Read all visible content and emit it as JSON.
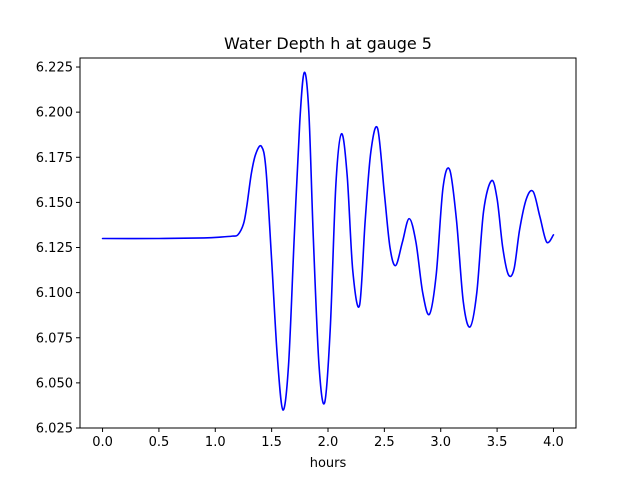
{
  "chart_data": {
    "type": "line",
    "title": "Water Depth h at gauge 5",
    "xlabel": "hours",
    "ylabel": "",
    "xlim": [
      -0.2,
      4.2
    ],
    "ylim": [
      6.025,
      6.23
    ],
    "grid": false,
    "x_ticks": [
      {
        "value": 0.0,
        "label": "0.0"
      },
      {
        "value": 0.5,
        "label": "0.5"
      },
      {
        "value": 1.0,
        "label": "1.0"
      },
      {
        "value": 1.5,
        "label": "1.5"
      },
      {
        "value": 2.0,
        "label": "2.0"
      },
      {
        "value": 2.5,
        "label": "2.5"
      },
      {
        "value": 3.0,
        "label": "3.0"
      },
      {
        "value": 3.5,
        "label": "3.5"
      },
      {
        "value": 4.0,
        "label": "4.0"
      }
    ],
    "y_ticks": [
      {
        "value": 6.025,
        "label": "6.025"
      },
      {
        "value": 6.05,
        "label": "6.050"
      },
      {
        "value": 6.075,
        "label": "6.075"
      },
      {
        "value": 6.1,
        "label": "6.100"
      },
      {
        "value": 6.125,
        "label": "6.125"
      },
      {
        "value": 6.15,
        "label": "6.150"
      },
      {
        "value": 6.175,
        "label": "6.175"
      },
      {
        "value": 6.2,
        "label": "6.200"
      },
      {
        "value": 6.225,
        "label": "6.225"
      }
    ],
    "series": [
      {
        "color": "#0000ff",
        "x": [
          0.0,
          0.5,
          0.9,
          1.05,
          1.15,
          1.2,
          1.25,
          1.28,
          1.32,
          1.36,
          1.41,
          1.45,
          1.5,
          1.55,
          1.6,
          1.65,
          1.7,
          1.75,
          1.79,
          1.83,
          1.87,
          1.92,
          1.97,
          2.02,
          2.07,
          2.12,
          2.17,
          2.22,
          2.28,
          2.33,
          2.38,
          2.44,
          2.5,
          2.55,
          2.6,
          2.66,
          2.72,
          2.78,
          2.84,
          2.9,
          2.96,
          3.02,
          3.08,
          3.14,
          3.2,
          3.26,
          3.32,
          3.38,
          3.45,
          3.5,
          3.55,
          3.6,
          3.65,
          3.7,
          3.76,
          3.82,
          3.88,
          3.94,
          4.0
        ],
        "y": [
          6.13,
          6.13,
          6.1303,
          6.1308,
          6.1313,
          6.132,
          6.138,
          6.148,
          6.166,
          6.177,
          6.181,
          6.168,
          6.118,
          6.065,
          6.035,
          6.06,
          6.13,
          6.195,
          6.222,
          6.2,
          6.13,
          6.06,
          6.039,
          6.08,
          6.16,
          6.188,
          6.165,
          6.112,
          6.093,
          6.14,
          6.178,
          6.191,
          6.155,
          6.125,
          6.115,
          6.128,
          6.141,
          6.128,
          6.1,
          6.088,
          6.11,
          6.158,
          6.168,
          6.14,
          6.095,
          6.081,
          6.1,
          6.145,
          6.162,
          6.152,
          6.125,
          6.11,
          6.113,
          6.135,
          6.152,
          6.156,
          6.142,
          6.128,
          6.132
        ]
      }
    ]
  }
}
